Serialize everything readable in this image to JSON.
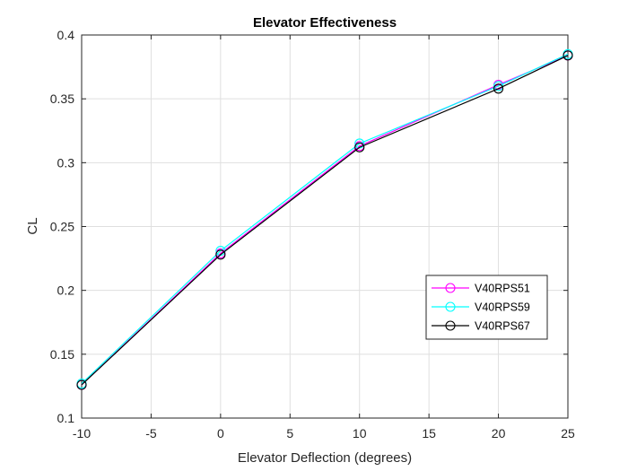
{
  "chart_data": {
    "type": "line",
    "title": "Elevator Effectiveness",
    "xlabel": "Elevator Deflection (degrees)",
    "ylabel": "CL",
    "xlim": [
      -10,
      25
    ],
    "ylim": [
      0.1,
      0.4
    ],
    "xticks": [
      -10,
      -5,
      0,
      5,
      10,
      15,
      20,
      25
    ],
    "yticks": [
      0.1,
      0.15,
      0.2,
      0.25,
      0.3,
      0.35,
      0.4
    ],
    "x": [
      -10,
      0,
      10,
      20,
      25
    ],
    "series": [
      {
        "name": "V40RPS51",
        "color": "#ff00ff",
        "values": [
          0.126,
          0.229,
          0.313,
          0.361,
          0.384
        ]
      },
      {
        "name": "V40RPS59",
        "color": "#00ffff",
        "values": [
          0.127,
          0.231,
          0.315,
          0.36,
          0.385
        ]
      },
      {
        "name": "V40RPS67",
        "color": "#000000",
        "values": [
          0.126,
          0.228,
          0.312,
          0.358,
          0.384
        ]
      }
    ],
    "grid": true,
    "marker": "circle",
    "legend_position": "right"
  }
}
